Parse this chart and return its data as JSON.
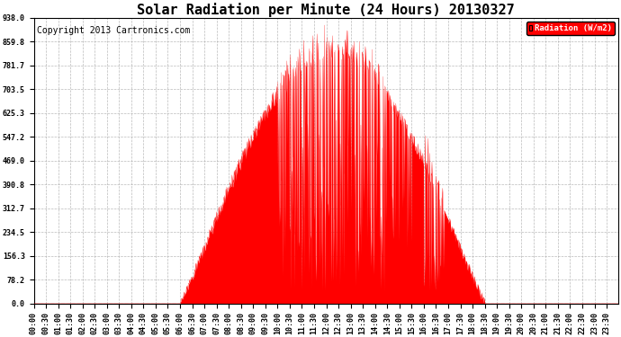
{
  "title": "Solar Radiation per Minute (24 Hours) 20130327",
  "copyright": "Copyright 2013 Cartronics.com",
  "legend_label": "Radiation (W/m2)",
  "ylim": [
    0.0,
    938.0
  ],
  "yticks": [
    0.0,
    78.2,
    156.3,
    234.5,
    312.7,
    390.8,
    469.0,
    547.2,
    625.3,
    703.5,
    781.7,
    859.8,
    938.0
  ],
  "fill_color": "#FF0000",
  "line_color": "#FF0000",
  "grid_color": "#AAAAAA",
  "bg_color": "#FFFFFF",
  "title_fontsize": 11,
  "copyright_fontsize": 7,
  "tick_fontsize": 6,
  "legend_bg": "#FF0000",
  "legend_text_color": "#FFFFFF",
  "sunrise_min": 360,
  "sunset_min": 1110,
  "peak_max": 938.0
}
